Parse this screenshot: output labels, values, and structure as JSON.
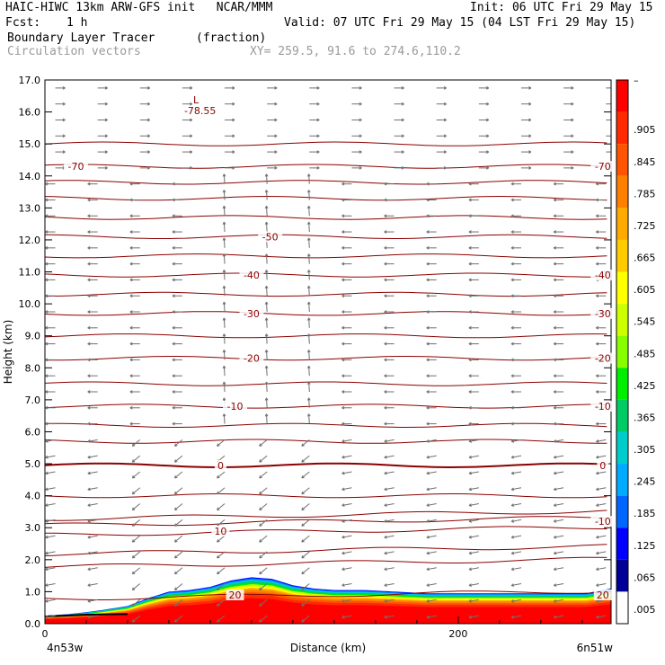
{
  "header": {
    "model_line": "HAIC-HIWC 13km ARW-GFS init   NCAR/MMM",
    "init_line": "Init: 06 UTC Fri 29 May 15",
    "fcst_label": "Fcst:",
    "fcst_value": "1 h",
    "valid_line": "Valid: 07 UTC Fri 29 May 15 (04 LST Fri 29 May 15)",
    "field_name": "Boundary Layer Tracer",
    "field_units": "(fraction)",
    "vector_label": "Circulation vectors",
    "xy_line": "XY= 259.5, 91.6 to 274.6,110.2"
  },
  "chart_data": {
    "type": "heatmap",
    "xlabel": "Distance (km)",
    "ylabel": "Height (km)",
    "xlim": [
      0,
      274
    ],
    "ylim": [
      0,
      17
    ],
    "x_ticks": [
      0,
      200
    ],
    "y_ticks": [
      "0.0",
      "1.0",
      "2.0",
      "3.0",
      "4.0",
      "5.0",
      "6.0",
      "7.0",
      "8.0",
      "9.0",
      "10.0",
      "11.0",
      "12.0",
      "13.0",
      "14.0",
      "15.0",
      "16.0",
      "17.0"
    ],
    "x_endpoint_labels": [
      "4n53w",
      "6n51w"
    ],
    "colorbar_labels": [
      "–",
      ".905",
      ".845",
      ".785",
      ".725",
      ".665",
      ".605",
      ".545",
      ".485",
      ".425",
      ".365",
      ".305",
      ".245",
      ".185",
      ".125",
      ".065",
      ".005"
    ],
    "colorbar_colors": [
      "#ff0000",
      "#ff2a00",
      "#ff5500",
      "#ff7f00",
      "#ffaa00",
      "#ffcc00",
      "#ffff00",
      "#ccff00",
      "#88ff00",
      "#00ee00",
      "#00cc66",
      "#00cccc",
      "#00aaff",
      "#0066ff",
      "#0000ff",
      "#000099"
    ],
    "contour_color": "#8b0000",
    "vector_color": "#707070",
    "temperature_contours": [
      {
        "value": "-70",
        "height": 14.3,
        "label_x": [
          15,
          270
        ]
      },
      {
        "value": "-50",
        "height": 12.1,
        "label_x": [
          109
        ]
      },
      {
        "value": "-40",
        "height": 10.9,
        "label_x": [
          100,
          270
        ]
      },
      {
        "value": "-30",
        "height": 9.7,
        "label_x": [
          100,
          270
        ]
      },
      {
        "value": "-20",
        "height": 8.3,
        "label_x": [
          100,
          270
        ]
      },
      {
        "value": "-10",
        "height": 6.8,
        "label_x": [
          92,
          270
        ]
      },
      {
        "value": "0",
        "height": 4.95,
        "label_x": [
          85,
          270
        ]
      },
      {
        "value": "-10",
        "height": 3.2,
        "label_x": [
          270
        ]
      },
      {
        "value": "10",
        "height": 2.9,
        "label_x": [
          85
        ]
      },
      {
        "value": "20",
        "height": 0.9,
        "label_x": [
          92,
          270
        ]
      }
    ],
    "extra_isotherm_heights": [
      15.0,
      13.8,
      13.3,
      12.7,
      11.5,
      10.3,
      9.0,
      7.5,
      6.2,
      5.7,
      4.0,
      3.4,
      2.3,
      1.9
    ],
    "low_marker": {
      "symbol": "L",
      "value": "-78.55",
      "x": 70,
      "height": 16.1
    },
    "tracer_top_km": [
      [
        0,
        0.25
      ],
      [
        12,
        0.3
      ],
      [
        25,
        0.4
      ],
      [
        40,
        0.55
      ],
      [
        50,
        0.8
      ],
      [
        60,
        1.0
      ],
      [
        70,
        1.05
      ],
      [
        80,
        1.15
      ],
      [
        90,
        1.35
      ],
      [
        100,
        1.45
      ],
      [
        110,
        1.4
      ],
      [
        120,
        1.2
      ],
      [
        130,
        1.1
      ],
      [
        140,
        1.05
      ],
      [
        155,
        1.05
      ],
      [
        170,
        1.0
      ],
      [
        185,
        0.95
      ],
      [
        200,
        0.95
      ],
      [
        215,
        0.95
      ],
      [
        230,
        0.95
      ],
      [
        245,
        0.95
      ],
      [
        262,
        0.95
      ],
      [
        274,
        1.1
      ]
    ]
  }
}
